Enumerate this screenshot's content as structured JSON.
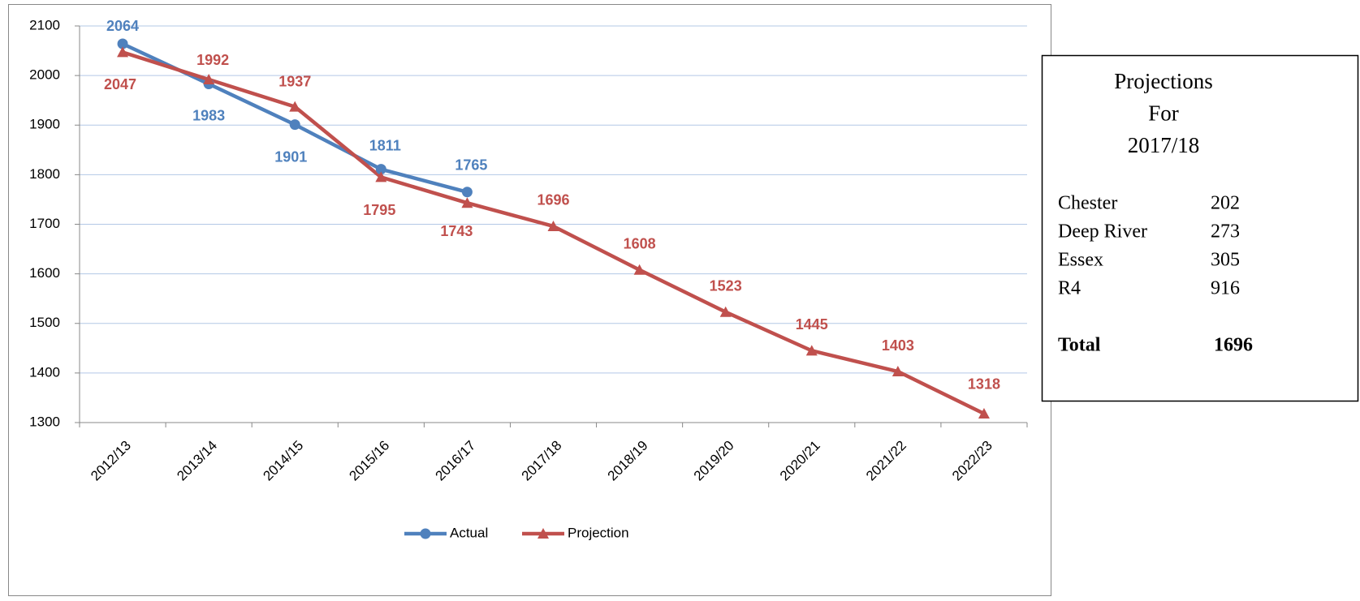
{
  "chart_data": {
    "type": "line",
    "categories": [
      "2012/13",
      "2013/14",
      "2014/15",
      "2015/16",
      "2016/17",
      "2017/18",
      "2018/19",
      "2019/20",
      "2020/21",
      "2021/22",
      "2022/23"
    ],
    "series": [
      {
        "name": "Actual",
        "color": "#4f81bd",
        "marker": "circle",
        "values": [
          2064,
          1983,
          1901,
          1811,
          1765,
          null,
          null,
          null,
          null,
          null,
          null
        ]
      },
      {
        "name": "Projection",
        "color": "#c0504d",
        "marker": "triangle",
        "values": [
          2047,
          1992,
          1937,
          1795,
          1743,
          1696,
          1608,
          1523,
          1445,
          1403,
          1318
        ]
      }
    ],
    "ylim": [
      1300,
      2100
    ],
    "yticks": [
      1300,
      1400,
      1500,
      1600,
      1700,
      1800,
      1900,
      2000,
      2100
    ],
    "grid": true,
    "legend": "bottom"
  },
  "text_box": {
    "title_lines": [
      "Projections",
      "For",
      "2017/18"
    ],
    "rows": [
      [
        "Chester",
        202
      ],
      [
        "Deep River",
        273
      ],
      [
        "Essex",
        305
      ],
      [
        "R4",
        916
      ]
    ],
    "total": [
      "Total",
      1696
    ]
  }
}
